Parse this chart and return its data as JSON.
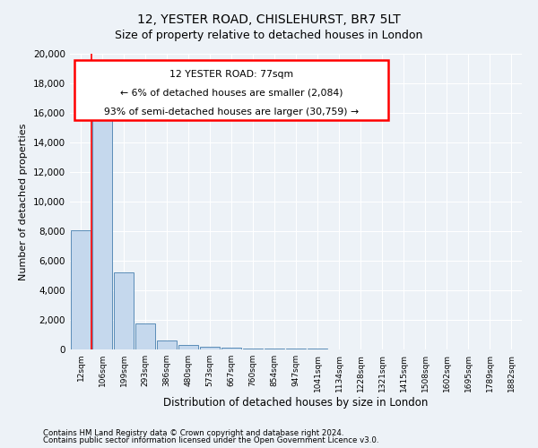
{
  "title1": "12, YESTER ROAD, CHISLEHURST, BR7 5LT",
  "title2": "Size of property relative to detached houses in London",
  "xlabel": "Distribution of detached houses by size in London",
  "ylabel": "Number of detached properties",
  "bar_labels": [
    "12sqm",
    "106sqm",
    "199sqm",
    "293sqm",
    "386sqm",
    "480sqm",
    "573sqm",
    "667sqm",
    "760sqm",
    "854sqm",
    "947sqm",
    "1041sqm",
    "1134sqm",
    "1228sqm",
    "1321sqm",
    "1415sqm",
    "1508sqm",
    "1602sqm",
    "1695sqm",
    "1789sqm",
    "1882sqm"
  ],
  "bar_values": [
    8050,
    16300,
    5200,
    1750,
    600,
    280,
    180,
    130,
    90,
    60,
    50,
    35,
    20,
    15,
    12,
    10,
    8,
    6,
    5,
    4,
    3
  ],
  "bar_color": "#c5d8ed",
  "bar_edge_color": "#5b8db8",
  "annotation_text_line1": "12 YESTER ROAD: 77sqm",
  "annotation_text_line2": "← 6% of detached houses are smaller (2,084)",
  "annotation_text_line3": "93% of semi-detached houses are larger (30,759) →",
  "footnote1": "Contains HM Land Registry data © Crown copyright and database right 2024.",
  "footnote2": "Contains public sector information licensed under the Open Government Licence v3.0.",
  "ylim": [
    0,
    20000
  ],
  "yticks": [
    0,
    2000,
    4000,
    6000,
    8000,
    10000,
    12000,
    14000,
    16000,
    18000,
    20000
  ],
  "background_color": "#edf2f7",
  "grid_color": "#ffffff"
}
